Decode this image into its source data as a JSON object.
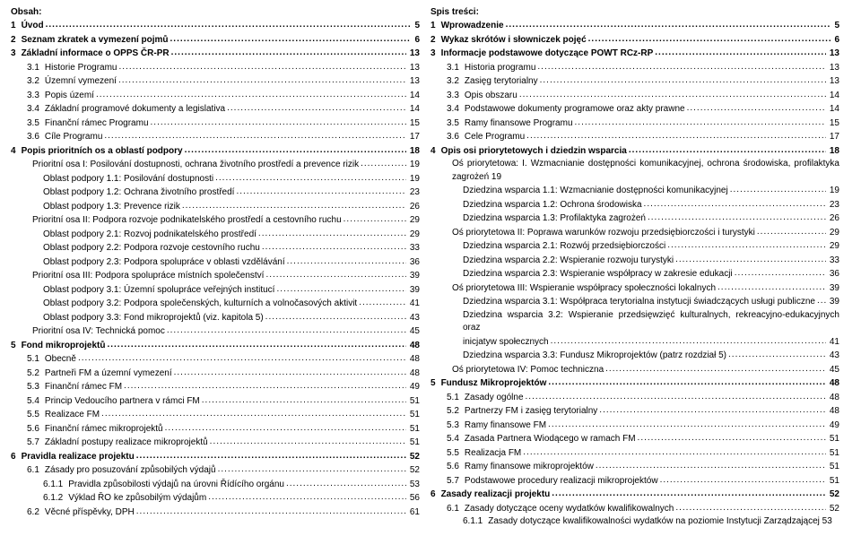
{
  "left": {
    "header": "Obsah:",
    "items": [
      {
        "num": "1",
        "label": "Úvod",
        "page": "5",
        "bold": true,
        "indent": 0
      },
      {
        "num": "2",
        "label": "Seznam zkratek a vymezení pojmů",
        "page": "6",
        "bold": true,
        "indent": 0
      },
      {
        "num": "3",
        "label": "Základní informace o OPPS ČR-PR",
        "page": "13",
        "bold": true,
        "indent": 0
      },
      {
        "num": "3.1",
        "label": "Historie Programu",
        "page": "13",
        "indent": 1
      },
      {
        "num": "3.2",
        "label": "Územní vymezení",
        "page": "13",
        "indent": 1
      },
      {
        "num": "3.3",
        "label": "Popis území",
        "page": "14",
        "indent": 1
      },
      {
        "num": "3.4",
        "label": "Základní programové dokumenty a legislativa",
        "page": "14",
        "indent": 1
      },
      {
        "num": "3.5",
        "label": "Finanční rámec Programu",
        "page": "15",
        "indent": 1
      },
      {
        "num": "3.6",
        "label": "Cíle Programu",
        "page": "17",
        "indent": 1
      },
      {
        "num": "4",
        "label": "Popis prioritních os a oblastí podpory",
        "page": "18",
        "bold": true,
        "indent": 0
      },
      {
        "num": "",
        "label": "Prioritní osa I: Posilování dostupnosti, ochrana životního prostředí a prevence rizik",
        "page": "19",
        "indent": 2
      },
      {
        "num": "",
        "label": "Oblast podpory 1.1: Posilování dostupnosti",
        "page": "19",
        "indent": 3
      },
      {
        "num": "",
        "label": "Oblast podpory 1.2: Ochrana životního prostředí",
        "page": "23",
        "indent": 3
      },
      {
        "num": "",
        "label": "Oblast podpory 1.3: Prevence rizik",
        "page": "26",
        "indent": 3
      },
      {
        "num": "",
        "label": "Prioritní osa II: Podpora rozvoje podnikatelského prostředí a cestovního ruchu",
        "page": "29",
        "indent": 2
      },
      {
        "num": "",
        "label": "Oblast podpory 2.1: Rozvoj podnikatelského prostředí",
        "page": "29",
        "indent": 3
      },
      {
        "num": "",
        "label": "Oblast podpory 2.2: Podpora rozvoje cestovního ruchu",
        "page": "33",
        "indent": 3
      },
      {
        "num": "",
        "label": "Oblast podpory 2.3: Podpora spolupráce v oblasti vzdělávání",
        "page": "36",
        "indent": 3
      },
      {
        "num": "",
        "label": "Prioritní osa III: Podpora spolupráce místních společenství",
        "page": "39",
        "indent": 2
      },
      {
        "num": "",
        "label": "Oblast podpory 3.1: Územní spolupráce veřejných institucí",
        "page": "39",
        "indent": 3
      },
      {
        "num": "",
        "label": "Oblast podpory 3.2: Podpora společenských, kulturních a volnočasových aktivit",
        "page": "41",
        "indent": 3
      },
      {
        "num": "",
        "label": "Oblast podpory 3.3: Fond mikroprojektů (viz. kapitola 5)",
        "page": "43",
        "indent": 3
      },
      {
        "num": "",
        "label": "Prioritní osa IV: Technická pomoc",
        "page": "45",
        "indent": 2
      },
      {
        "num": "5",
        "label": "Fond mikroprojektů",
        "page": "48",
        "bold": true,
        "indent": 0
      },
      {
        "num": "5.1",
        "label": "Obecně",
        "page": "48",
        "indent": 1
      },
      {
        "num": "5.2",
        "label": "Partneři FM a územní vymezení",
        "page": "48",
        "indent": 1
      },
      {
        "num": "5.3",
        "label": "Finanční rámec FM",
        "page": "49",
        "indent": 1
      },
      {
        "num": "5.4",
        "label": "Princip Vedoucího partnera v rámci FM",
        "page": "51",
        "indent": 1
      },
      {
        "num": "5.5",
        "label": "Realizace FM",
        "page": "51",
        "indent": 1
      },
      {
        "num": "5.6",
        "label": "Finanční rámec mikroprojektů",
        "page": "51",
        "indent": 1
      },
      {
        "num": "5.7",
        "label": "Základní postupy realizace mikroprojektů",
        "page": "51",
        "indent": 1
      },
      {
        "num": "6",
        "label": "Pravidla realizace projektu",
        "page": "52",
        "bold": true,
        "indent": 0
      },
      {
        "num": "6.1",
        "label": "Zásady pro posuzování způsobilých výdajů",
        "page": "52",
        "indent": 1
      },
      {
        "num": "6.1.1",
        "label": "Pravidla způsobilosti výdajů na úrovni Řídícího orgánu",
        "page": "53",
        "indent": 3
      },
      {
        "num": "6.1.2",
        "label": "Výklad ŘO ke způsobilým výdajům",
        "page": "56",
        "indent": 3
      },
      {
        "num": "6.2",
        "label": "Věcné příspěvky, DPH",
        "page": "61",
        "indent": 1
      }
    ]
  },
  "right": {
    "header": "Spis treści:",
    "items": [
      {
        "num": "1",
        "label": "Wprowadzenie",
        "page": "5",
        "bold": true,
        "indent": 0
      },
      {
        "num": "2",
        "label": "Wykaz skrótów i słowniczek pojęć",
        "page": "6",
        "bold": true,
        "indent": 0
      },
      {
        "num": "3",
        "label": "Informacje podstawowe dotyczące POWT RCz-RP",
        "page": "13",
        "bold": true,
        "indent": 0
      },
      {
        "num": "3.1",
        "label": "Historia programu",
        "page": "13",
        "indent": 1
      },
      {
        "num": "3.2",
        "label": "Zasięg terytorialny",
        "page": "13",
        "indent": 1
      },
      {
        "num": "3.3",
        "label": "Opis obszaru",
        "page": "14",
        "indent": 1
      },
      {
        "num": "3.4",
        "label": "Podstawowe dokumenty programowe oraz akty prawne",
        "page": "14",
        "indent": 1
      },
      {
        "num": "3.5",
        "label": "Ramy finansowe Programu",
        "page": "15",
        "indent": 1
      },
      {
        "num": "3.6",
        "label": "Cele Programu",
        "page": "17",
        "indent": 1
      },
      {
        "num": "4",
        "label": "Opis osi priorytetowych i dziedzin wsparcia",
        "page": "18",
        "bold": true,
        "indent": 0
      },
      {
        "num": "",
        "label": "Oś priorytetowa: I. Wzmacnianie dostępności komunikacyjnej, ochrona środowiska, profilaktyka zagrożeń    19",
        "page": "",
        "indent": 2,
        "noDots": true,
        "wrap": true
      },
      {
        "num": "",
        "label": "Dziedzina wsparcia 1.1: Wzmacnianie dostępności komunikacyjnej",
        "page": "19",
        "indent": 3
      },
      {
        "num": "",
        "label": "Dziedzina wsparcia 1.2: Ochrona środowiska",
        "page": "23",
        "indent": 3
      },
      {
        "num": "",
        "label": "Dziedzina wsparcia 1.3: Profilaktyka zagrożeń",
        "page": "26",
        "indent": 3
      },
      {
        "num": "",
        "label": "Oś priorytetowa  II: Poprawa warunków rozwoju przedsiębiorczości i turystyki",
        "page": "29",
        "indent": 2
      },
      {
        "num": "",
        "label": "Dziedzina wsparcia 2.1: Rozwój przedsiębiorczości",
        "page": "29",
        "indent": 3
      },
      {
        "num": "",
        "label": "Dziedzina wsparcia 2.2: Wspieranie rozwoju turystyki",
        "page": "33",
        "indent": 3
      },
      {
        "num": "",
        "label": "Dziedzina wsparcia 2.3: Wspieranie współpracy w zakresie edukacji",
        "page": "36",
        "indent": 3
      },
      {
        "num": "",
        "label": "Oś priorytetowa  III: Wspieranie współpracy społeczności lokalnych",
        "page": "39",
        "indent": 2
      },
      {
        "num": "",
        "label": "Dziedzina wsparcia 3.1: Współpraca terytorialna instytucji świadczących usługi publiczne",
        "page": "39",
        "indent": 3
      },
      {
        "num": "",
        "label": "Dziedzina wsparcia 3.2: Wspieranie przedsięwzięć kulturalnych, rekreacyjno-edukacyjnych oraz inicjatyw społecznych",
        "page": "41",
        "indent": 3,
        "noDots": true,
        "wrap": true,
        "pageInline": true
      },
      {
        "num": "",
        "label": "Dziedzina wsparcia 3.3: Fundusz Mikroprojektów (patrz rozdział 5)",
        "page": "43",
        "indent": 3
      },
      {
        "num": "",
        "label": "Oś priorytetowa IV: Pomoc techniczna",
        "page": "45",
        "indent": 2
      },
      {
        "num": "5",
        "label": "Fundusz Mikroprojektów",
        "page": "48",
        "bold": true,
        "indent": 0
      },
      {
        "num": "5.1",
        "label": "Zasady ogólne",
        "page": "48",
        "indent": 1
      },
      {
        "num": "5.2",
        "label": "Partnerzy FM i zasięg terytorialny",
        "page": "48",
        "indent": 1
      },
      {
        "num": "5.3",
        "label": "Ramy finansowe FM",
        "page": "49",
        "indent": 1
      },
      {
        "num": "5.4",
        "label": "Zasada Partnera Wiodącego w ramach FM",
        "page": "51",
        "indent": 1
      },
      {
        "num": "5.5",
        "label": "Realizacja FM",
        "page": "51",
        "indent": 1
      },
      {
        "num": "5.6",
        "label": "Ramy finansowe mikroprojektów",
        "page": "51",
        "indent": 1
      },
      {
        "num": "5.7",
        "label": "Podstawowe procedury realizacji mikroprojektów",
        "page": "51",
        "indent": 1
      },
      {
        "num": "6",
        "label": "Zasady realizacji projektu",
        "page": "52",
        "bold": true,
        "indent": 0
      },
      {
        "num": "6.1",
        "label": "Zasady dotyczące oceny wydatków kwalifikowalnych",
        "page": "52",
        "indent": 1
      },
      {
        "num": "6.1.1",
        "label": "Zasady dotyczące kwalifikowalności wydatków na poziomie Instytucji Zarządzającej   53",
        "page": "",
        "indent": 3,
        "noDots": true,
        "wrap": true
      }
    ]
  }
}
